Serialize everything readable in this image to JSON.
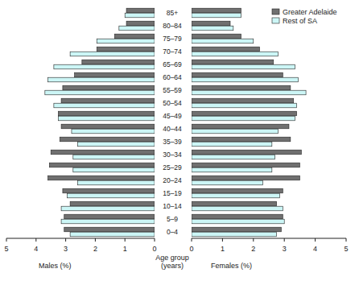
{
  "chart_data": [
    {
      "type": "bar",
      "orientation": "horizontal",
      "xlabel": "Males (%)",
      "ylabel": "Age group (years)",
      "categories": [
        "0–4",
        "5–9",
        "10–14",
        "15–19",
        "20–24",
        "25–29",
        "30–34",
        "35–39",
        "40–44",
        "45–49",
        "50–54",
        "55–59",
        "60–64",
        "65–69",
        "70–74",
        "75–79",
        "80–84",
        "85+"
      ],
      "series": [
        {
          "name": "Greater Adelaide",
          "color": "#707070",
          "values": [
            3.05,
            3.05,
            2.85,
            3.1,
            3.6,
            3.55,
            3.5,
            3.2,
            3.15,
            3.25,
            3.15,
            3.1,
            2.7,
            2.45,
            1.95,
            1.35,
            0.95,
            0.95
          ]
        },
        {
          "name": "Rest of SA",
          "color": "#ccf6f6",
          "values": [
            2.85,
            3.15,
            3.15,
            2.95,
            2.6,
            2.75,
            2.75,
            2.6,
            2.8,
            3.25,
            3.4,
            3.7,
            3.6,
            3.4,
            2.85,
            1.95,
            1.2,
            1.0
          ]
        }
      ],
      "xlim": [
        5,
        0
      ],
      "xticks": [
        5,
        4,
        3,
        2,
        1,
        0
      ]
    },
    {
      "type": "bar",
      "orientation": "horizontal",
      "xlabel": "Females (%)",
      "legend": "top-right",
      "categories": [
        "0–4",
        "5–9",
        "10–14",
        "15–19",
        "20–24",
        "25–29",
        "30–34",
        "35–39",
        "40–44",
        "45–49",
        "50–54",
        "55–59",
        "60–64",
        "65–69",
        "70–74",
        "75–79",
        "80–84",
        "85+"
      ],
      "series": [
        {
          "name": "Greater Adelaide",
          "color": "#707070",
          "values": [
            2.9,
            2.95,
            2.75,
            2.95,
            3.5,
            3.5,
            3.55,
            3.2,
            3.15,
            3.4,
            3.3,
            3.2,
            2.95,
            2.65,
            2.2,
            1.6,
            1.25,
            1.6
          ]
        },
        {
          "name": "Rest of SA",
          "color": "#ccf6f6",
          "values": [
            2.75,
            3.0,
            2.95,
            2.85,
            2.3,
            2.6,
            2.7,
            2.6,
            2.8,
            3.35,
            3.4,
            3.7,
            3.45,
            3.35,
            2.8,
            2.0,
            1.35,
            1.6
          ]
        }
      ],
      "xlim": [
        0,
        5
      ],
      "xticks": [
        0,
        1,
        2,
        3,
        4,
        5
      ]
    }
  ]
}
